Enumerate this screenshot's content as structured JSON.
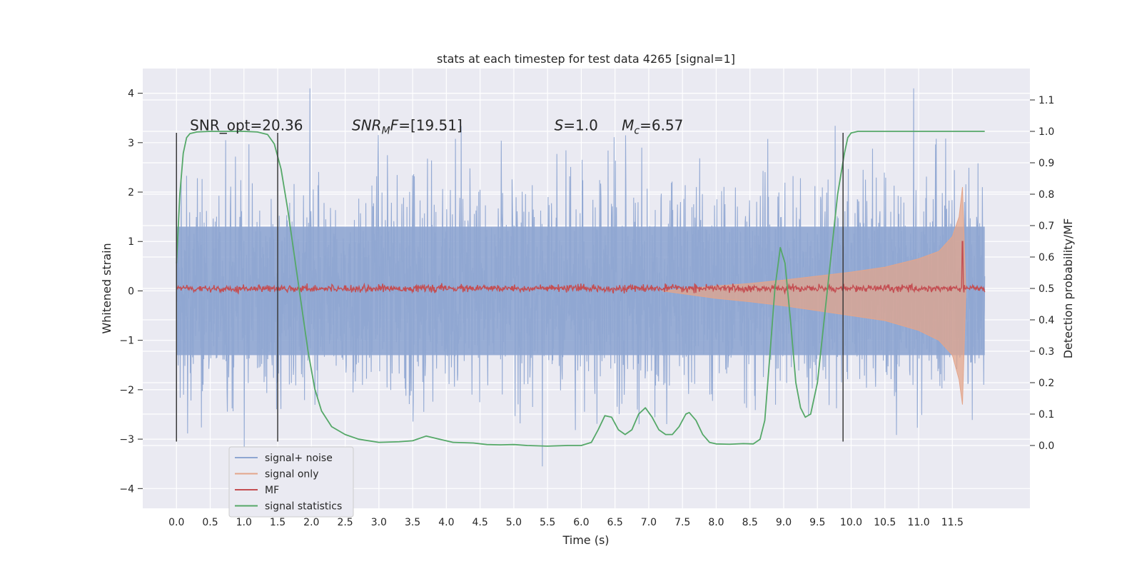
{
  "chart_data": {
    "type": "line",
    "title": "stats at each timestep for test data 4265 [signal=1]",
    "xlabel": "Time (s)",
    "ylabel_left": "Whitened strain",
    "ylabel_right": "Detection probability/MF",
    "xlim": [
      -0.5,
      12.65
    ],
    "ylim_left": [
      -4.4,
      4.5
    ],
    "ylim_right": [
      -0.2,
      1.2
    ],
    "x_ticks": [
      "0.0",
      "0.5",
      "1.0",
      "1.5",
      "2.0",
      "2.5",
      "3.0",
      "3.5",
      "4.0",
      "4.5",
      "5.0",
      "5.5",
      "6.0",
      "6.5",
      "7.0",
      "7.5",
      "8.0",
      "8.5",
      "9.0",
      "9.5",
      "10.0",
      "10.5",
      "11.0",
      "11.5"
    ],
    "y_ticks_left": [
      -4,
      -3,
      -2,
      -1,
      0,
      1,
      2,
      3,
      4
    ],
    "y_ticks_right": [
      0.0,
      0.1,
      0.2,
      0.3,
      0.4,
      0.5,
      0.6,
      0.7,
      0.8,
      0.9,
      1.0,
      1.1
    ],
    "grid": true,
    "legend_position": "lower-left",
    "annotations": [
      {
        "parts": [
          {
            "text": "SNR_opt=20.36",
            "italic": false
          }
        ]
      },
      {
        "parts": [
          {
            "text": "SNR",
            "italic": true
          },
          {
            "text": "M",
            "italic": true,
            "sub": true
          },
          {
            "text": "F",
            "italic": true
          },
          {
            "text": "=[19.51]",
            "italic": false
          }
        ]
      },
      {
        "parts": [
          {
            "text": "S",
            "italic": true
          },
          {
            "text": "=1.0",
            "italic": false
          }
        ]
      },
      {
        "parts": [
          {
            "text": "M",
            "italic": true
          },
          {
            "text": "c",
            "italic": true,
            "sub": true
          },
          {
            "text": "=6.57",
            "italic": false
          }
        ]
      }
    ],
    "vertical_markers_x": [
      0.0,
      1.5,
      9.88
    ],
    "series": [
      {
        "name": "signal+ noise",
        "color": "#8fa6d2",
        "axis": "left",
        "kind": "noise_band",
        "x_range": [
          0.0,
          11.98
        ],
        "typical_abs": 1.3,
        "max_value": 4.1,
        "min_value": -3.85
      },
      {
        "name": "signal only",
        "color": "#e3a58b",
        "axis": "left",
        "kind": "chirp_envelope",
        "x": [
          7.2,
          8.0,
          8.5,
          9.0,
          9.5,
          10.0,
          10.5,
          11.0,
          11.3,
          11.5,
          11.6,
          11.65,
          11.7
        ],
        "upper": [
          0.0,
          0.1,
          0.15,
          0.22,
          0.3,
          0.38,
          0.48,
          0.65,
          0.8,
          1.1,
          1.5,
          2.1,
          0.0
        ],
        "lower": [
          0.0,
          -0.15,
          -0.22,
          -0.3,
          -0.4,
          -0.5,
          -0.6,
          -0.8,
          -1.0,
          -1.3,
          -1.8,
          -2.3,
          0.0
        ]
      },
      {
        "name": "MF",
        "color": "#c44e52",
        "axis": "left",
        "kind": "flat_noise",
        "x_range": [
          0.0,
          11.98
        ],
        "baseline": 0.05,
        "peak_x": 11.65,
        "peak_value": 1.0
      },
      {
        "name": "signal statistics",
        "color": "#55a868",
        "axis": "right",
        "x": [
          0.0,
          0.05,
          0.1,
          0.15,
          0.2,
          0.3,
          0.5,
          0.8,
          1.0,
          1.2,
          1.35,
          1.45,
          1.55,
          1.65,
          1.75,
          1.85,
          1.95,
          2.05,
          2.15,
          2.3,
          2.5,
          2.7,
          3.0,
          3.3,
          3.5,
          3.7,
          3.9,
          4.1,
          4.4,
          4.6,
          4.8,
          5.0,
          5.2,
          5.5,
          5.8,
          6.0,
          6.15,
          6.25,
          6.35,
          6.45,
          6.55,
          6.65,
          6.75,
          6.85,
          6.95,
          7.05,
          7.15,
          7.25,
          7.35,
          7.45,
          7.55,
          7.6,
          7.7,
          7.8,
          7.9,
          8.0,
          8.2,
          8.4,
          8.55,
          8.65,
          8.72,
          8.8,
          8.87,
          8.95,
          9.02,
          9.1,
          9.18,
          9.25,
          9.32,
          9.4,
          9.5,
          9.6,
          9.7,
          9.8,
          9.9,
          9.95,
          10.0,
          10.1,
          10.3,
          10.5,
          11.0,
          11.5,
          11.98
        ],
        "values": [
          0.58,
          0.8,
          0.93,
          0.98,
          0.993,
          0.998,
          1.0,
          1.0,
          1.0,
          0.998,
          0.99,
          0.96,
          0.88,
          0.75,
          0.6,
          0.45,
          0.3,
          0.18,
          0.11,
          0.06,
          0.035,
          0.02,
          0.01,
          0.012,
          0.015,
          0.03,
          0.02,
          0.01,
          0.008,
          0.003,
          0.002,
          0.003,
          0.0,
          -0.002,
          0.0,
          0.0,
          0.01,
          0.05,
          0.095,
          0.09,
          0.05,
          0.035,
          0.05,
          0.1,
          0.12,
          0.09,
          0.05,
          0.035,
          0.035,
          0.06,
          0.1,
          0.105,
          0.08,
          0.035,
          0.01,
          0.005,
          0.004,
          0.006,
          0.005,
          0.02,
          0.08,
          0.3,
          0.5,
          0.63,
          0.58,
          0.4,
          0.2,
          0.12,
          0.09,
          0.1,
          0.2,
          0.4,
          0.6,
          0.8,
          0.93,
          0.98,
          0.995,
          1.0,
          1.0,
          1.0,
          1.0,
          1.0,
          1.0
        ]
      }
    ]
  }
}
